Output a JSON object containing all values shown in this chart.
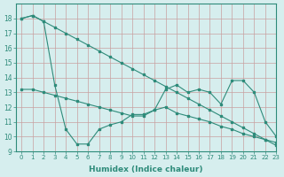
{
  "line1_x": [
    0,
    1,
    2,
    3,
    4,
    5,
    6,
    7,
    8,
    9,
    10,
    11,
    12,
    13,
    14,
    15,
    16,
    17,
    18,
    19,
    20,
    21,
    22,
    23
  ],
  "line1_y": [
    18.0,
    18.2,
    17.8,
    17.4,
    17.0,
    16.6,
    16.2,
    15.8,
    15.4,
    15.0,
    14.6,
    14.2,
    13.8,
    13.4,
    13.0,
    12.6,
    12.2,
    11.8,
    11.4,
    11.0,
    10.6,
    10.2,
    9.8,
    9.4
  ],
  "line2_x": [
    0,
    1,
    2,
    3,
    4,
    5,
    6,
    7,
    8,
    9,
    10,
    11,
    12,
    13,
    14,
    15,
    16,
    17,
    18,
    19,
    20,
    21,
    22,
    23
  ],
  "line2_y": [
    18.0,
    18.2,
    17.8,
    13.5,
    10.5,
    9.5,
    9.5,
    10.5,
    10.8,
    11.0,
    11.5,
    11.5,
    11.8,
    13.2,
    13.5,
    13.0,
    13.2,
    13.0,
    12.2,
    13.8,
    13.8,
    13.0,
    11.0,
    10.0
  ],
  "line3_x": [
    0,
    1,
    2,
    3,
    4,
    5,
    6,
    7,
    8,
    9,
    10,
    11,
    12,
    13,
    14,
    15,
    16,
    17,
    18,
    19,
    20,
    21,
    22,
    23
  ],
  "line3_y": [
    13.2,
    13.2,
    13.0,
    12.8,
    12.6,
    12.4,
    12.2,
    12.0,
    11.8,
    11.6,
    11.4,
    11.4,
    11.8,
    12.0,
    11.6,
    11.4,
    11.2,
    11.0,
    10.7,
    10.5,
    10.2,
    10.0,
    9.8,
    9.6
  ],
  "line_color": "#2e8b7a",
  "bg_color": "#d6eeee",
  "grid_color": "#b0d4d4",
  "xlabel": "Humidex (Indice chaleur)",
  "ylim": [
    9,
    19
  ],
  "xlim": [
    -0.5,
    23
  ],
  "yticks": [
    9,
    10,
    11,
    12,
    13,
    14,
    15,
    16,
    17,
    18
  ],
  "xticks": [
    0,
    1,
    2,
    3,
    4,
    5,
    6,
    7,
    8,
    9,
    10,
    11,
    12,
    13,
    14,
    15,
    16,
    17,
    18,
    19,
    20,
    21,
    22,
    23
  ]
}
